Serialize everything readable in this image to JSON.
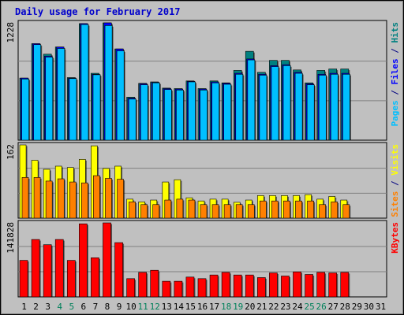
{
  "chart_data": [
    {
      "type": "bar",
      "panel": "hits-files-pages",
      "title": "Daily usage for February 2017",
      "categories": [
        "1",
        "2",
        "3",
        "4",
        "5",
        "6",
        "7",
        "8",
        "9",
        "10",
        "11",
        "12",
        "13",
        "14",
        "15",
        "16",
        "17",
        "18",
        "19",
        "20",
        "21",
        "22",
        "23",
        "24",
        "25",
        "26",
        "27",
        "28",
        "29",
        "30",
        "31"
      ],
      "ymax_label": "1228",
      "ylim": [
        0,
        1228
      ],
      "series": [
        {
          "name": "Hits",
          "color": "#008080",
          "values": [
            650,
            1010,
            900,
            975,
            655,
            1220,
            700,
            1228,
            955,
            450,
            595,
            610,
            545,
            540,
            620,
            540,
            620,
            600,
            730,
            930,
            710,
            835,
            835,
            735,
            600,
            730,
            745,
            745,
            null,
            null,
            null
          ]
        },
        {
          "name": "Files",
          "color": "#0000ff",
          "values": [
            650,
            1010,
            880,
            975,
            650,
            1220,
            690,
            1228,
            955,
            440,
            590,
            605,
            540,
            535,
            615,
            535,
            610,
            595,
            700,
            850,
            690,
            780,
            790,
            710,
            590,
            690,
            700,
            700,
            null,
            null,
            null
          ]
        },
        {
          "name": "Pages",
          "color": "#00bfff",
          "values": [
            640,
            1000,
            870,
            960,
            645,
            1210,
            685,
            1200,
            935,
            430,
            580,
            600,
            530,
            525,
            610,
            525,
            600,
            585,
            690,
            840,
            680,
            770,
            780,
            700,
            580,
            680,
            690,
            690,
            null,
            null,
            null
          ]
        }
      ],
      "right_label": {
        "parts": [
          {
            "text": "Pages",
            "color": "#00bfff"
          },
          {
            "text": " / ",
            "color": "#000080"
          },
          {
            "text": "Files",
            "color": "#0000ff"
          },
          {
            "text": " / ",
            "color": "#000080"
          },
          {
            "text": "Hits",
            "color": "#008080"
          }
        ]
      }
    },
    {
      "type": "bar",
      "panel": "visits-sites",
      "categories": [
        "1",
        "2",
        "3",
        "4",
        "5",
        "6",
        "7",
        "8",
        "9",
        "10",
        "11",
        "12",
        "13",
        "14",
        "15",
        "16",
        "17",
        "18",
        "19",
        "20",
        "21",
        "22",
        "23",
        "24",
        "25",
        "26",
        "27",
        "28",
        "29",
        "30",
        "31"
      ],
      "ymax_label": "162",
      "ylim": [
        0,
        162
      ],
      "series": [
        {
          "name": "Visits",
          "color": "#ffff00",
          "values": [
            162,
            128,
            108,
            115,
            112,
            130,
            160,
            110,
            115,
            42,
            36,
            40,
            80,
            85,
            45,
            38,
            42,
            42,
            35,
            40,
            50,
            50,
            50,
            50,
            52,
            42,
            48,
            40,
            null,
            null,
            null
          ]
        },
        {
          "name": "Sites",
          "color": "#ff8000",
          "values": [
            90,
            90,
            82,
            87,
            80,
            78,
            94,
            88,
            86,
            36,
            30,
            30,
            40,
            42,
            40,
            30,
            30,
            30,
            30,
            30,
            38,
            38,
            38,
            38,
            38,
            30,
            36,
            30,
            null,
            null,
            null
          ]
        }
      ],
      "right_label": {
        "parts": [
          {
            "text": "Sites",
            "color": "#ff8000"
          },
          {
            "text": " / ",
            "color": "#000080"
          },
          {
            "text": "Visits",
            "color": "#ffff00"
          }
        ]
      }
    },
    {
      "type": "bar",
      "panel": "kbytes",
      "categories": [
        "1",
        "2",
        "3",
        "4",
        "5",
        "6",
        "7",
        "8",
        "9",
        "10",
        "11",
        "12",
        "13",
        "14",
        "15",
        "16",
        "17",
        "18",
        "19",
        "20",
        "21",
        "22",
        "23",
        "24",
        "25",
        "26",
        "27",
        "28",
        "29",
        "30",
        "31"
      ],
      "ymax_label": "141828",
      "ylim": [
        0,
        141828
      ],
      "series": [
        {
          "name": "KBytes",
          "color": "#ff0000",
          "values": [
            70000,
            110000,
            100000,
            110000,
            70000,
            140000,
            75000,
            141828,
            104000,
            35000,
            47000,
            51000,
            30000,
            30000,
            38000,
            35000,
            42000,
            47000,
            42000,
            42000,
            37000,
            46000,
            40000,
            48000,
            43000,
            47000,
            46000,
            47000,
            null,
            null,
            null
          ]
        }
      ],
      "right_label": {
        "parts": [
          {
            "text": "KBytes",
            "color": "#ff0000"
          }
        ]
      }
    }
  ],
  "x_label_colors": {
    "weekday": "#000000",
    "weekend": "#00805a"
  },
  "weekend_days": [
    4,
    5,
    11,
    12,
    18,
    19,
    25,
    26
  ],
  "colors": {
    "background": "#c0c0c0",
    "plot_background": "#c0c0c0",
    "title": "#0000cc",
    "gridline": "#808080",
    "axis_label": "#000000"
  }
}
